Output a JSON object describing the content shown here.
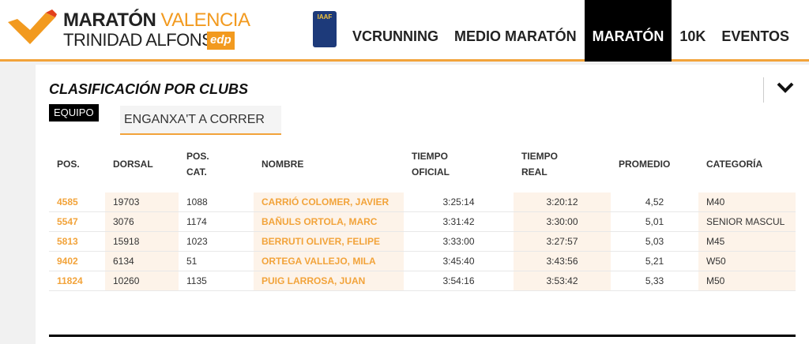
{
  "header": {
    "logo": {
      "line1a": "MARATÓN",
      "line1b": "VALENCIA",
      "line2": "TRINIDAD ALFONSO",
      "sponsor": "edp"
    },
    "badge": "IAAF",
    "nav": [
      {
        "label": "VCRUNNING",
        "active": false
      },
      {
        "label": "MEDIO MARATÓN",
        "active": false
      },
      {
        "label": "MARATÓN",
        "active": true
      },
      {
        "label": "10K",
        "active": false
      },
      {
        "label": "EVENTOS",
        "active": false
      }
    ]
  },
  "section": {
    "title": "CLASIFICACIÓN POR CLUBS",
    "filter_label": "EQUIPO",
    "filter_value": "ENGANXA'T A CORRER"
  },
  "table": {
    "columns": [
      "POS.",
      "DORSAL",
      "POS. CAT.",
      "NOMBRE",
      "TIEMPO OFICIAL",
      "TIEMPO REAL",
      "PROMEDIO",
      "CATEGORÍA"
    ],
    "rows": [
      [
        "4585",
        "19703",
        "1088",
        "CARRIÓ COLOMER, JAVIER",
        "3:25:14",
        "3:20:12",
        "4,52",
        "M40"
      ],
      [
        "5547",
        "3076",
        "1174",
        "BAÑULS ORTOLA, MARC",
        "3:31:42",
        "3:30:00",
        "5,01",
        "SENIOR MASCUL"
      ],
      [
        "5813",
        "15918",
        "1023",
        "BERRUTI OLIVER, FELIPE",
        "3:33:00",
        "3:27:57",
        "5,03",
        "M45"
      ],
      [
        "9402",
        "6134",
        "51",
        "ORTEGA VALLEJO, MILA",
        "3:45:40",
        "3:43:56",
        "5,21",
        "W50"
      ],
      [
        "11824",
        "10260",
        "1135",
        "PUIG LARROSA, JUAN",
        "3:54:16",
        "3:53:42",
        "5,33",
        "M50"
      ]
    ]
  }
}
